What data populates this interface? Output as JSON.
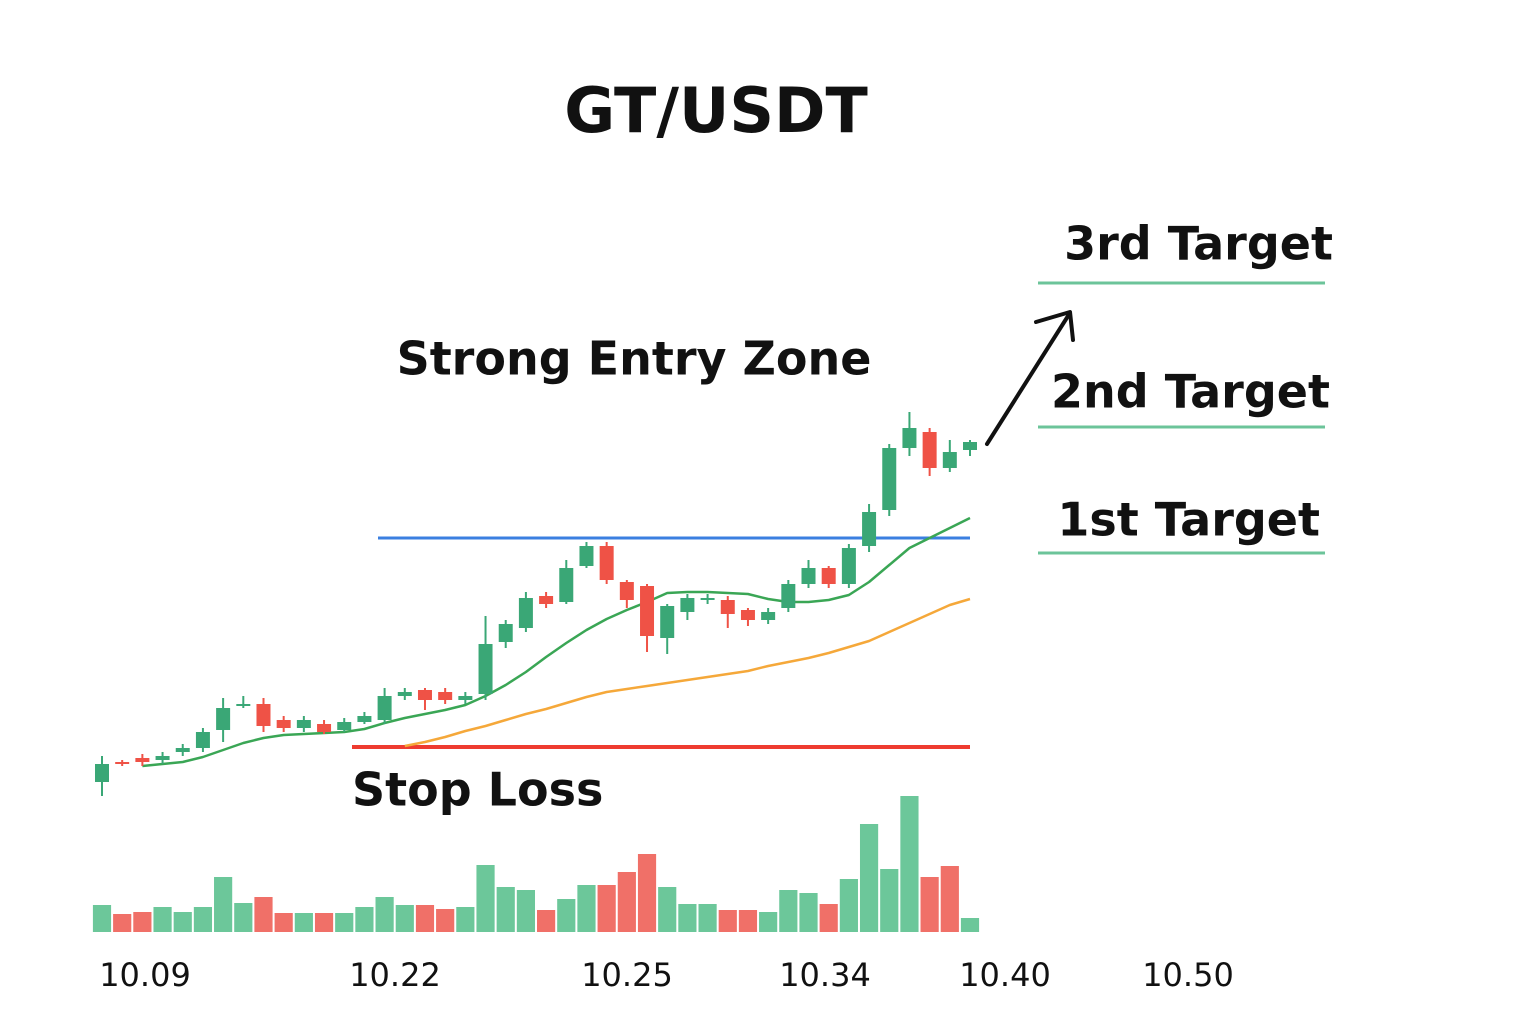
{
  "chart_data": {
    "type": "candlestick",
    "title": "GT/USDT",
    "ylim": [
      0,
      150
    ],
    "volume_ylim": [
      0,
      150
    ],
    "up_color": "#3aa776",
    "down_color": "#ef5246",
    "open": [
      4.5,
      9.5,
      10.5,
      10,
      12,
      13,
      17.5,
      23.5,
      24,
      20,
      18,
      19,
      17.5,
      19.5,
      20,
      26,
      27.5,
      27,
      25,
      26.5,
      39.5,
      43,
      51,
      49.5,
      58.5,
      63.5,
      54.5,
      53.5,
      40.5,
      47,
      50,
      50,
      47.5,
      45,
      48,
      54,
      58,
      54,
      63.5,
      72.5,
      88,
      92,
      83,
      87.5
    ],
    "high": [
      11,
      10,
      11.5,
      12,
      14,
      18,
      25.5,
      26,
      25.5,
      21,
      21,
      20,
      20.5,
      22,
      28,
      28,
      28,
      28,
      27,
      46,
      45,
      52,
      52,
      60,
      64.5,
      64.5,
      55,
      54,
      49,
      51.5,
      51.5,
      51,
      48,
      48,
      55,
      60,
      58.5,
      64,
      74,
      89,
      97,
      93,
      90,
      90
    ],
    "low": [
      1,
      8.5,
      8.5,
      9,
      11,
      12,
      14.5,
      23,
      17,
      17,
      17,
      16.5,
      17,
      19,
      19,
      25,
      22.5,
      24,
      24,
      25,
      38,
      42,
      48,
      49,
      58,
      54,
      48,
      37,
      36.5,
      45,
      49,
      43,
      43.5,
      44,
      47,
      53,
      53,
      53,
      62,
      71,
      86,
      81,
      82,
      86
    ],
    "close": [
      9,
      9,
      9.5,
      11,
      13,
      17,
      23,
      24,
      18.5,
      18,
      20,
      17,
      19.5,
      21,
      26,
      27,
      25,
      25,
      26,
      39,
      44,
      50.5,
      49,
      58,
      63.5,
      55,
      50,
      41,
      48.5,
      50.5,
      50.5,
      46.5,
      45,
      47,
      54,
      58,
      54,
      63,
      72,
      88,
      93,
      83,
      87,
      89.5
    ],
    "volume": [
      27,
      18,
      20,
      25,
      20,
      25,
      55,
      29,
      35,
      19,
      19,
      19,
      19,
      25,
      35,
      27,
      27,
      23,
      25,
      67,
      45,
      42,
      22,
      33,
      47,
      47,
      60,
      78,
      45,
      28,
      28,
      22,
      22,
      20,
      42,
      39,
      28,
      53,
      108,
      63,
      136,
      55,
      66,
      14
    ],
    "volume_colors": [
      "#6cc79a",
      "#f07068",
      "#f07068",
      "#6cc79a",
      "#6cc79a",
      "#6cc79a",
      "#6cc79a",
      "#6cc79a",
      "#f07068",
      "#f07068",
      "#6cc79a",
      "#f07068",
      "#6cc79a",
      "#6cc79a",
      "#6cc79a",
      "#6cc79a",
      "#f07068",
      "#f07068",
      "#6cc79a",
      "#6cc79a",
      "#6cc79a",
      "#6cc79a",
      "#f07068",
      "#6cc79a",
      "#6cc79a",
      "#f07068",
      "#f07068",
      "#f07068",
      "#6cc79a",
      "#6cc79a",
      "#6cc79a",
      "#f07068",
      "#f07068",
      "#6cc79a",
      "#6cc79a",
      "#6cc79a",
      "#f07068",
      "#6cc79a",
      "#6cc79a",
      "#6cc79a",
      "#6cc79a",
      "#f07068",
      "#f07068",
      "#6cc79a"
    ],
    "moving_averages": [
      {
        "color": "#3aa655",
        "values": [
          null,
          null,
          8.5,
          9,
          9.5,
          10.75,
          12.5,
          14.25,
          15.5,
          16.25,
          16.5,
          16.75,
          17,
          17.75,
          19.25,
          20.5,
          21.5,
          22.5,
          23.75,
          26,
          28.75,
          32,
          35.75,
          39.25,
          42.5,
          45.25,
          47.5,
          49.5,
          51.75,
          52,
          52,
          51.75,
          51.5,
          50.25,
          49.5,
          49.5,
          50,
          51.25,
          54.5,
          58.75,
          63,
          65.5,
          68,
          70.5
        ]
      },
      {
        "color": "#f5a83a",
        "values": [
          null,
          null,
          null,
          null,
          null,
          null,
          null,
          null,
          null,
          null,
          null,
          null,
          null,
          null,
          null,
          13.5,
          14.5,
          15.75,
          17.25,
          18.5,
          20,
          21.5,
          22.75,
          24.25,
          25.75,
          27,
          27.75,
          28.5,
          29.25,
          30,
          30.75,
          31.5,
          32.25,
          33.5,
          34.5,
          35.5,
          36.75,
          38.25,
          39.75,
          42,
          44.25,
          46.5,
          48.75,
          50.25
        ]
      }
    ],
    "levels": [
      {
        "label": "Strong Entry Zone",
        "value": 65.5,
        "color": "#3b7fe0"
      },
      {
        "label": "Stop Loss",
        "value": 13.25,
        "color": "#ee3b30"
      },
      {
        "label": "3rd Target",
        "value": 129.25,
        "color": "#6cc49a"
      },
      {
        "label": "2nd Target",
        "value": 93.25,
        "color": "#6cc49a"
      },
      {
        "label": "1st Target",
        "value": 61.75,
        "color": "#6cc49a"
      }
    ],
    "xtick_labels": [
      "10.09",
      "10.22",
      "10.25",
      "10.34",
      "10.40",
      "10.50"
    ]
  }
}
